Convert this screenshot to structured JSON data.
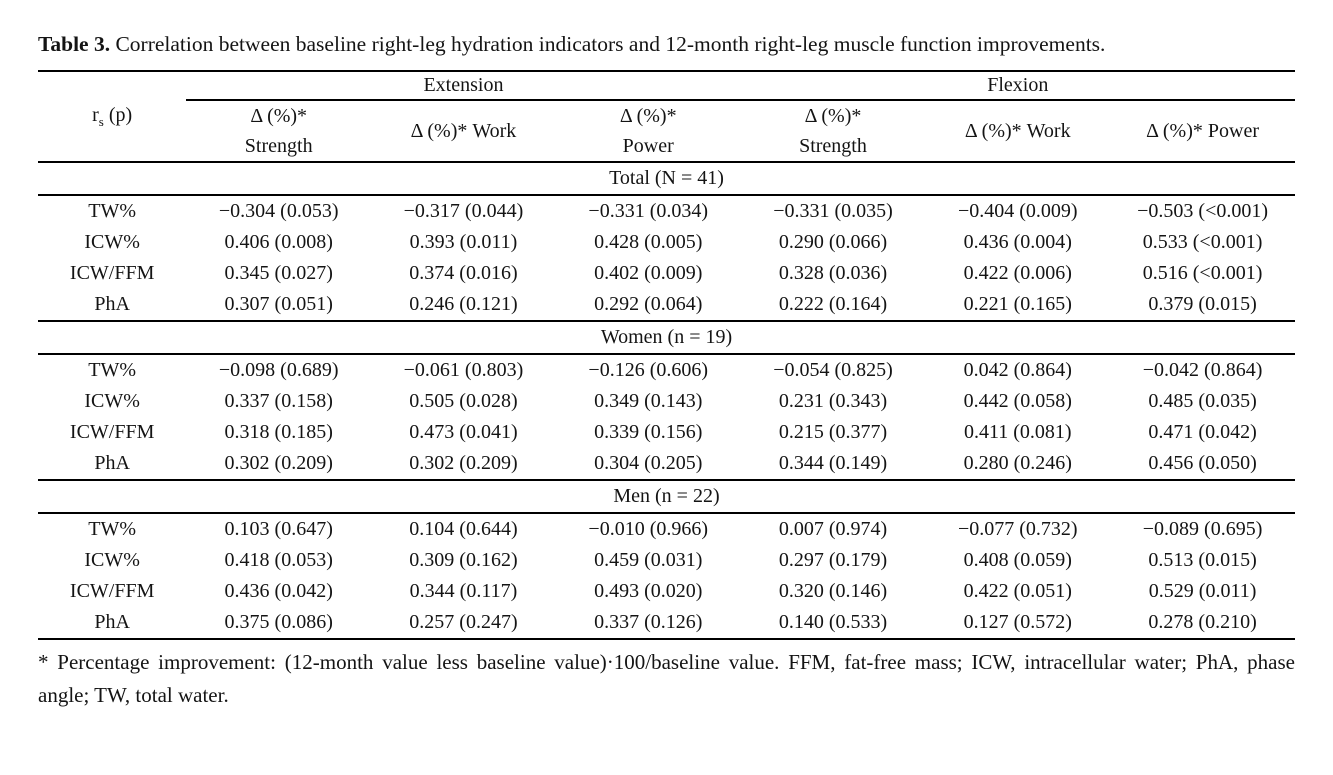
{
  "title": {
    "label": "Table 3.",
    "text": " Correlation between baseline right-leg hydration indicators and 12-month right-leg muscle function improvements."
  },
  "table": {
    "corner": {
      "main": "r",
      "sub": "s",
      "rest": " (p)"
    },
    "groups": [
      {
        "label": "Extension"
      },
      {
        "label": "Flexion"
      }
    ],
    "columns": [
      "Δ (%)*\nStrength",
      "Δ (%)* Work",
      "Δ (%)*\nPower",
      "Δ (%)*\nStrength",
      "Δ (%)* Work",
      "Δ (%)* Power"
    ],
    "sections": [
      {
        "label": "Total (N = 41)",
        "rows": [
          {
            "name": "TW%",
            "values": [
              "−0.304 (0.053)",
              "−0.317 (0.044)",
              "−0.331 (0.034)",
              "−0.331 (0.035)",
              "−0.404 (0.009)",
              "−0.503 (<0.001)"
            ]
          },
          {
            "name": "ICW%",
            "values": [
              "0.406 (0.008)",
              "0.393 (0.011)",
              "0.428 (0.005)",
              "0.290 (0.066)",
              "0.436 (0.004)",
              "0.533 (<0.001)"
            ]
          },
          {
            "name": "ICW/FFM",
            "values": [
              "0.345 (0.027)",
              "0.374 (0.016)",
              "0.402 (0.009)",
              "0.328 (0.036)",
              "0.422 (0.006)",
              "0.516 (<0.001)"
            ]
          },
          {
            "name": "PhA",
            "values": [
              "0.307 (0.051)",
              "0.246 (0.121)",
              "0.292 (0.064)",
              "0.222 (0.164)",
              "0.221 (0.165)",
              "0.379 (0.015)"
            ]
          }
        ]
      },
      {
        "label": "Women (n = 19)",
        "rows": [
          {
            "name": "TW%",
            "values": [
              "−0.098 (0.689)",
              "−0.061 (0.803)",
              "−0.126 (0.606)",
              "−0.054 (0.825)",
              "0.042 (0.864)",
              "−0.042 (0.864)"
            ]
          },
          {
            "name": "ICW%",
            "values": [
              "0.337 (0.158)",
              "0.505 (0.028)",
              "0.349 (0.143)",
              "0.231 (0.343)",
              "0.442 (0.058)",
              "0.485 (0.035)"
            ]
          },
          {
            "name": "ICW/FFM",
            "values": [
              "0.318 (0.185)",
              "0.473 (0.041)",
              "0.339 (0.156)",
              "0.215 (0.377)",
              "0.411 (0.081)",
              "0.471 (0.042)"
            ]
          },
          {
            "name": "PhA",
            "values": [
              "0.302 (0.209)",
              "0.302 (0.209)",
              "0.304 (0.205)",
              "0.344 (0.149)",
              "0.280 (0.246)",
              "0.456 (0.050)"
            ]
          }
        ]
      },
      {
        "label": "Men (n = 22)",
        "rows": [
          {
            "name": "TW%",
            "values": [
              "0.103 (0.647)",
              "0.104 (0.644)",
              "−0.010 (0.966)",
              "0.007 (0.974)",
              "−0.077 (0.732)",
              "−0.089 (0.695)"
            ]
          },
          {
            "name": "ICW%",
            "values": [
              "0.418 (0.053)",
              "0.309 (0.162)",
              "0.459 (0.031)",
              "0.297 (0.179)",
              "0.408 (0.059)",
              "0.513 (0.015)"
            ]
          },
          {
            "name": "ICW/FFM",
            "values": [
              "0.436 (0.042)",
              "0.344 (0.117)",
              "0.493 (0.020)",
              "0.320 (0.146)",
              "0.422 (0.051)",
              "0.529 (0.011)"
            ]
          },
          {
            "name": "PhA",
            "values": [
              "0.375 (0.086)",
              "0.257 (0.247)",
              "0.337 (0.126)",
              "0.140 (0.533)",
              "0.127 (0.572)",
              "0.278 (0.210)"
            ]
          }
        ]
      }
    ]
  },
  "footnote": "* Percentage improvement: (12-month value less baseline value)·100/baseline value. FFM, fat-free mass; ICW, intracellular water; PhA, phase angle; TW, total water."
}
